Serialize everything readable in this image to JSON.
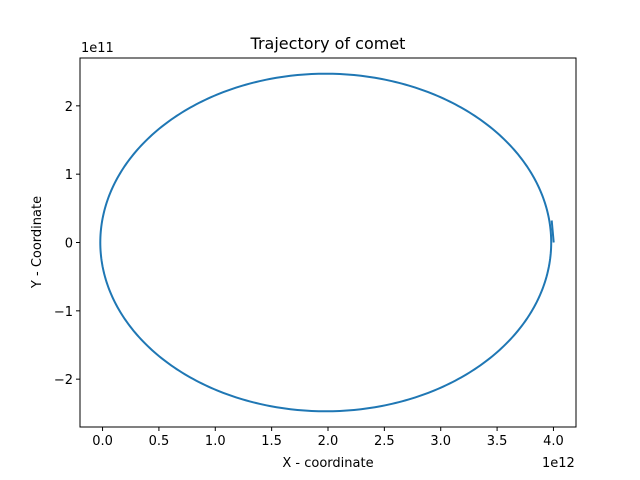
{
  "chart_data": {
    "type": "line",
    "title": "Trajectory of comet",
    "xlabel": "X - coordinate",
    "ylabel": "Y - Coordinate",
    "x_multiplier_label": "1e12",
    "y_multiplier_label": "1e11",
    "xlim": [
      -0.2,
      4.2
    ],
    "ylim": [
      -2.7,
      2.7
    ],
    "x_ticks": [
      0.0,
      0.5,
      1.0,
      1.5,
      2.0,
      2.5,
      3.0,
      3.5,
      4.0
    ],
    "x_tick_labels": [
      "0.0",
      "0.5",
      "1.0",
      "1.5",
      "2.0",
      "2.5",
      "3.0",
      "3.5",
      "4.0"
    ],
    "y_ticks": [
      -2,
      -1,
      0,
      1,
      2
    ],
    "y_tick_labels": [
      "−2",
      "−1",
      "0",
      "1",
      "2"
    ],
    "grid": false,
    "series": [
      {
        "color": "#1f77b4",
        "shape": "ellipse",
        "center_x": 1.98,
        "center_y": 0.0,
        "semi_axis_x": 2.0,
        "semi_axis_y": 2.47,
        "start_point": {
          "x": 3.98,
          "y": 0.0
        }
      }
    ]
  }
}
